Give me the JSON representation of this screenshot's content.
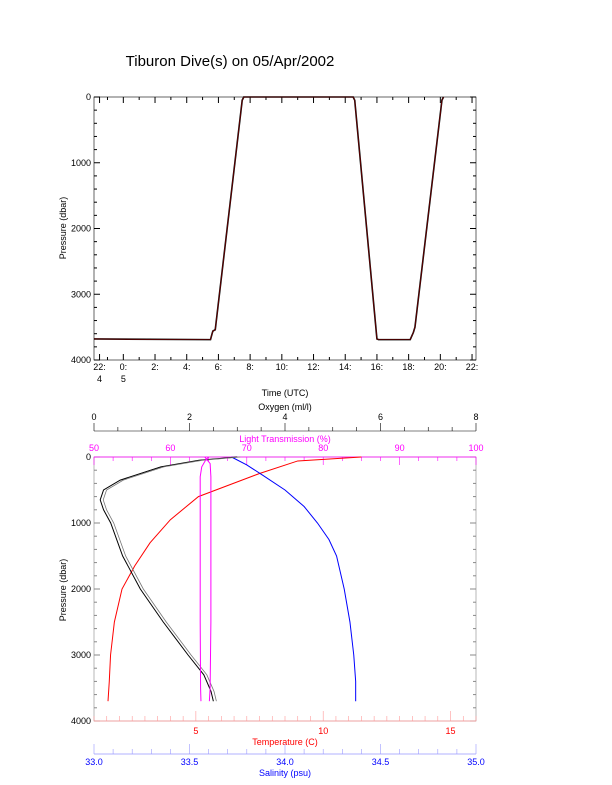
{
  "title": "Tiburon Dive(s) on 05/Apr/2002",
  "colors": {
    "temperature": "#ff0000",
    "salinity": "#0000ff",
    "oxygen": "#000000",
    "light": "#ff00ff",
    "dive": "#8b0000"
  },
  "chart_data": [
    {
      "type": "line",
      "title": "Tiburon Dive(s) on 05/Apr/2002",
      "xlabel": "Time (UTC)",
      "ylabel": "Pressure (dbar)",
      "xlim_hours": [
        -1.85,
        22.25
      ],
      "ylim": [
        4000,
        0
      ],
      "xticks": [
        {
          "v": -1.5,
          "l1": "22:",
          "l2": "4"
        },
        {
          "v": 0,
          "l1": "0:",
          "l2": "5"
        },
        {
          "v": 2,
          "l1": "2:",
          "l2": ""
        },
        {
          "v": 4,
          "l1": "4:",
          "l2": ""
        },
        {
          "v": 6,
          "l1": "6:",
          "l2": ""
        },
        {
          "v": 8,
          "l1": "8:",
          "l2": ""
        },
        {
          "v": 10,
          "l1": "10:",
          "l2": ""
        },
        {
          "v": 12,
          "l1": "12:",
          "l2": ""
        },
        {
          "v": 14,
          "l1": "14:",
          "l2": ""
        },
        {
          "v": 16,
          "l1": "16:",
          "l2": ""
        },
        {
          "v": 18,
          "l1": "18:",
          "l2": ""
        },
        {
          "v": 20,
          "l1": "20:",
          "l2": ""
        },
        {
          "v": 22,
          "l1": "22:",
          "l2": ""
        }
      ],
      "yticks": [
        "0",
        "1000",
        "2000",
        "3000",
        "4000"
      ],
      "series": [
        {
          "name": "Pressure",
          "x": [
            -1.85,
            5.5,
            5.6,
            5.65,
            5.8,
            7.5,
            7.6,
            14.5,
            14.6,
            16.0,
            16.1,
            18.1,
            18.3,
            18.4,
            20.1,
            20.2
          ],
          "y": [
            3680,
            3690,
            3600,
            3560,
            3540,
            50,
            0,
            0,
            50,
            3680,
            3690,
            3690,
            3580,
            3500,
            50,
            0
          ]
        }
      ]
    },
    {
      "type": "line",
      "ylabel": "Pressure (dbar)",
      "ylim": [
        4000,
        0
      ],
      "yticks": [
        "0",
        "1000",
        "2000",
        "3000",
        "4000"
      ],
      "axes": {
        "oxygen": {
          "label": "Oxygen (ml/l)",
          "range": [
            0,
            8
          ],
          "ticks": [
            "0",
            "2",
            "4",
            "6",
            "8"
          ]
        },
        "light": {
          "label": "Light Transmission (%)",
          "range": [
            50,
            100
          ],
          "ticks": [
            "50",
            "60",
            "70",
            "80",
            "90",
            "100"
          ]
        },
        "temperature": {
          "label": "Temperature (C)",
          "range": [
            1,
            16
          ],
          "ticks": [
            "5",
            "10",
            "15"
          ]
        },
        "salinity": {
          "label": "Salinity (psu)",
          "range": [
            33.0,
            35.0
          ],
          "ticks": [
            "33.0",
            "33.5",
            "34.0",
            "34.5",
            "35.0"
          ]
        }
      },
      "series": [
        {
          "name": "Temperature",
          "axis": "temperature",
          "color": "#ff0000",
          "x": [
            11.5,
            9.0,
            7.5,
            5.1,
            4.0,
            3.2,
            2.6,
            2.1,
            1.8,
            1.65,
            1.6,
            1.55
          ],
          "p": [
            0,
            60,
            250,
            600,
            950,
            1300,
            1650,
            2000,
            2500,
            3000,
            3400,
            3700
          ]
        },
        {
          "name": "Salinity",
          "axis": "salinity",
          "color": "#0000ff",
          "x": [
            33.72,
            33.8,
            33.88,
            34.0,
            34.1,
            34.17,
            34.23,
            34.27,
            34.31,
            34.34,
            34.36,
            34.37,
            34.37
          ],
          "p": [
            0,
            120,
            270,
            500,
            750,
            1000,
            1250,
            1500,
            2000,
            2500,
            3000,
            3400,
            3700
          ]
        },
        {
          "name": "Oxygen",
          "axis": "oxygen",
          "color": "#000000",
          "x": [
            3.0,
            2.2,
            1.4,
            0.55,
            0.2,
            0.13,
            0.2,
            0.35,
            0.6,
            0.97,
            1.45,
            1.97,
            2.3,
            2.45,
            2.5
          ],
          "p": [
            0,
            50,
            150,
            350,
            500,
            650,
            800,
            1000,
            1500,
            2000,
            2500,
            3000,
            3300,
            3550,
            3700
          ]
        },
        {
          "name": "Light Transmission (down)",
          "axis": "light",
          "color": "#ff00ff",
          "x": [
            65,
            64.6,
            64.1,
            63.9,
            63.9,
            63.9,
            63.95,
            64.0
          ],
          "p": [
            0,
            50,
            150,
            300,
            1000,
            2500,
            3500,
            3700
          ]
        },
        {
          "name": "Light Transmission (up)",
          "axis": "light",
          "color": "#ff00ff",
          "x": [
            64.5,
            65.2,
            65.3,
            65.3,
            65.3,
            65.2,
            65.1
          ],
          "p": [
            0,
            100,
            300,
            1000,
            2500,
            3500,
            3700
          ]
        }
      ]
    }
  ]
}
